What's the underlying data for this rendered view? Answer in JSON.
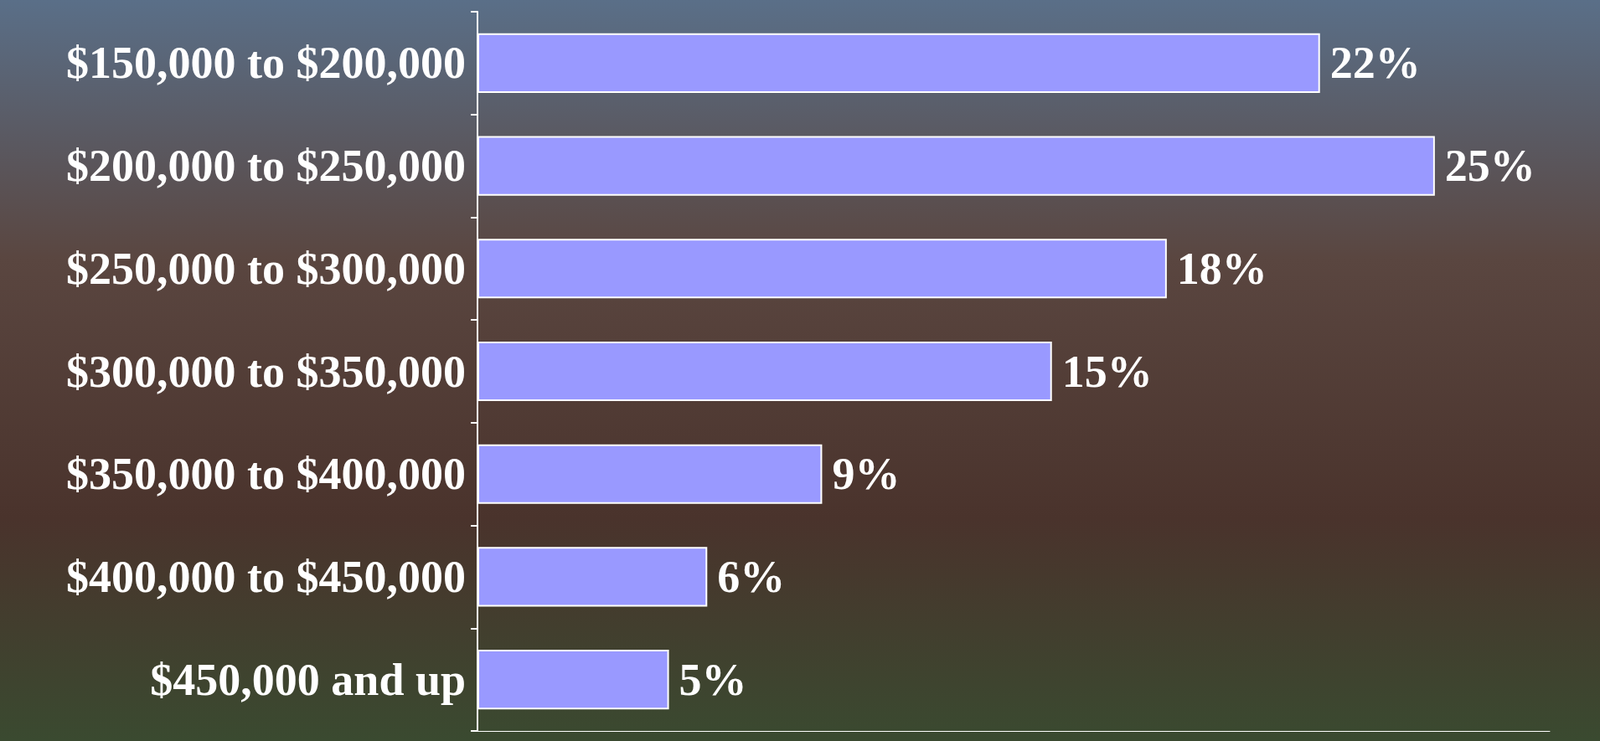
{
  "chart_data": {
    "type": "bar",
    "orientation": "horizontal",
    "categories": [
      "$150,000 to $200,000",
      "$200,000 to $250,000",
      "$250,000 to $300,000",
      "$300,000 to $350,000",
      "$350,000 to $400,000",
      "$400,000 to $450,000",
      "$450,000 and up"
    ],
    "values": [
      22,
      25,
      18,
      15,
      9,
      6,
      5
    ],
    "value_labels": [
      "22%",
      "25%",
      "18%",
      "15%",
      "9%",
      "6%",
      "5%"
    ],
    "color": "#9999ff",
    "xlim": [
      0,
      28
    ],
    "data_labels": true,
    "tick_labels": "y",
    "grid": false
  }
}
